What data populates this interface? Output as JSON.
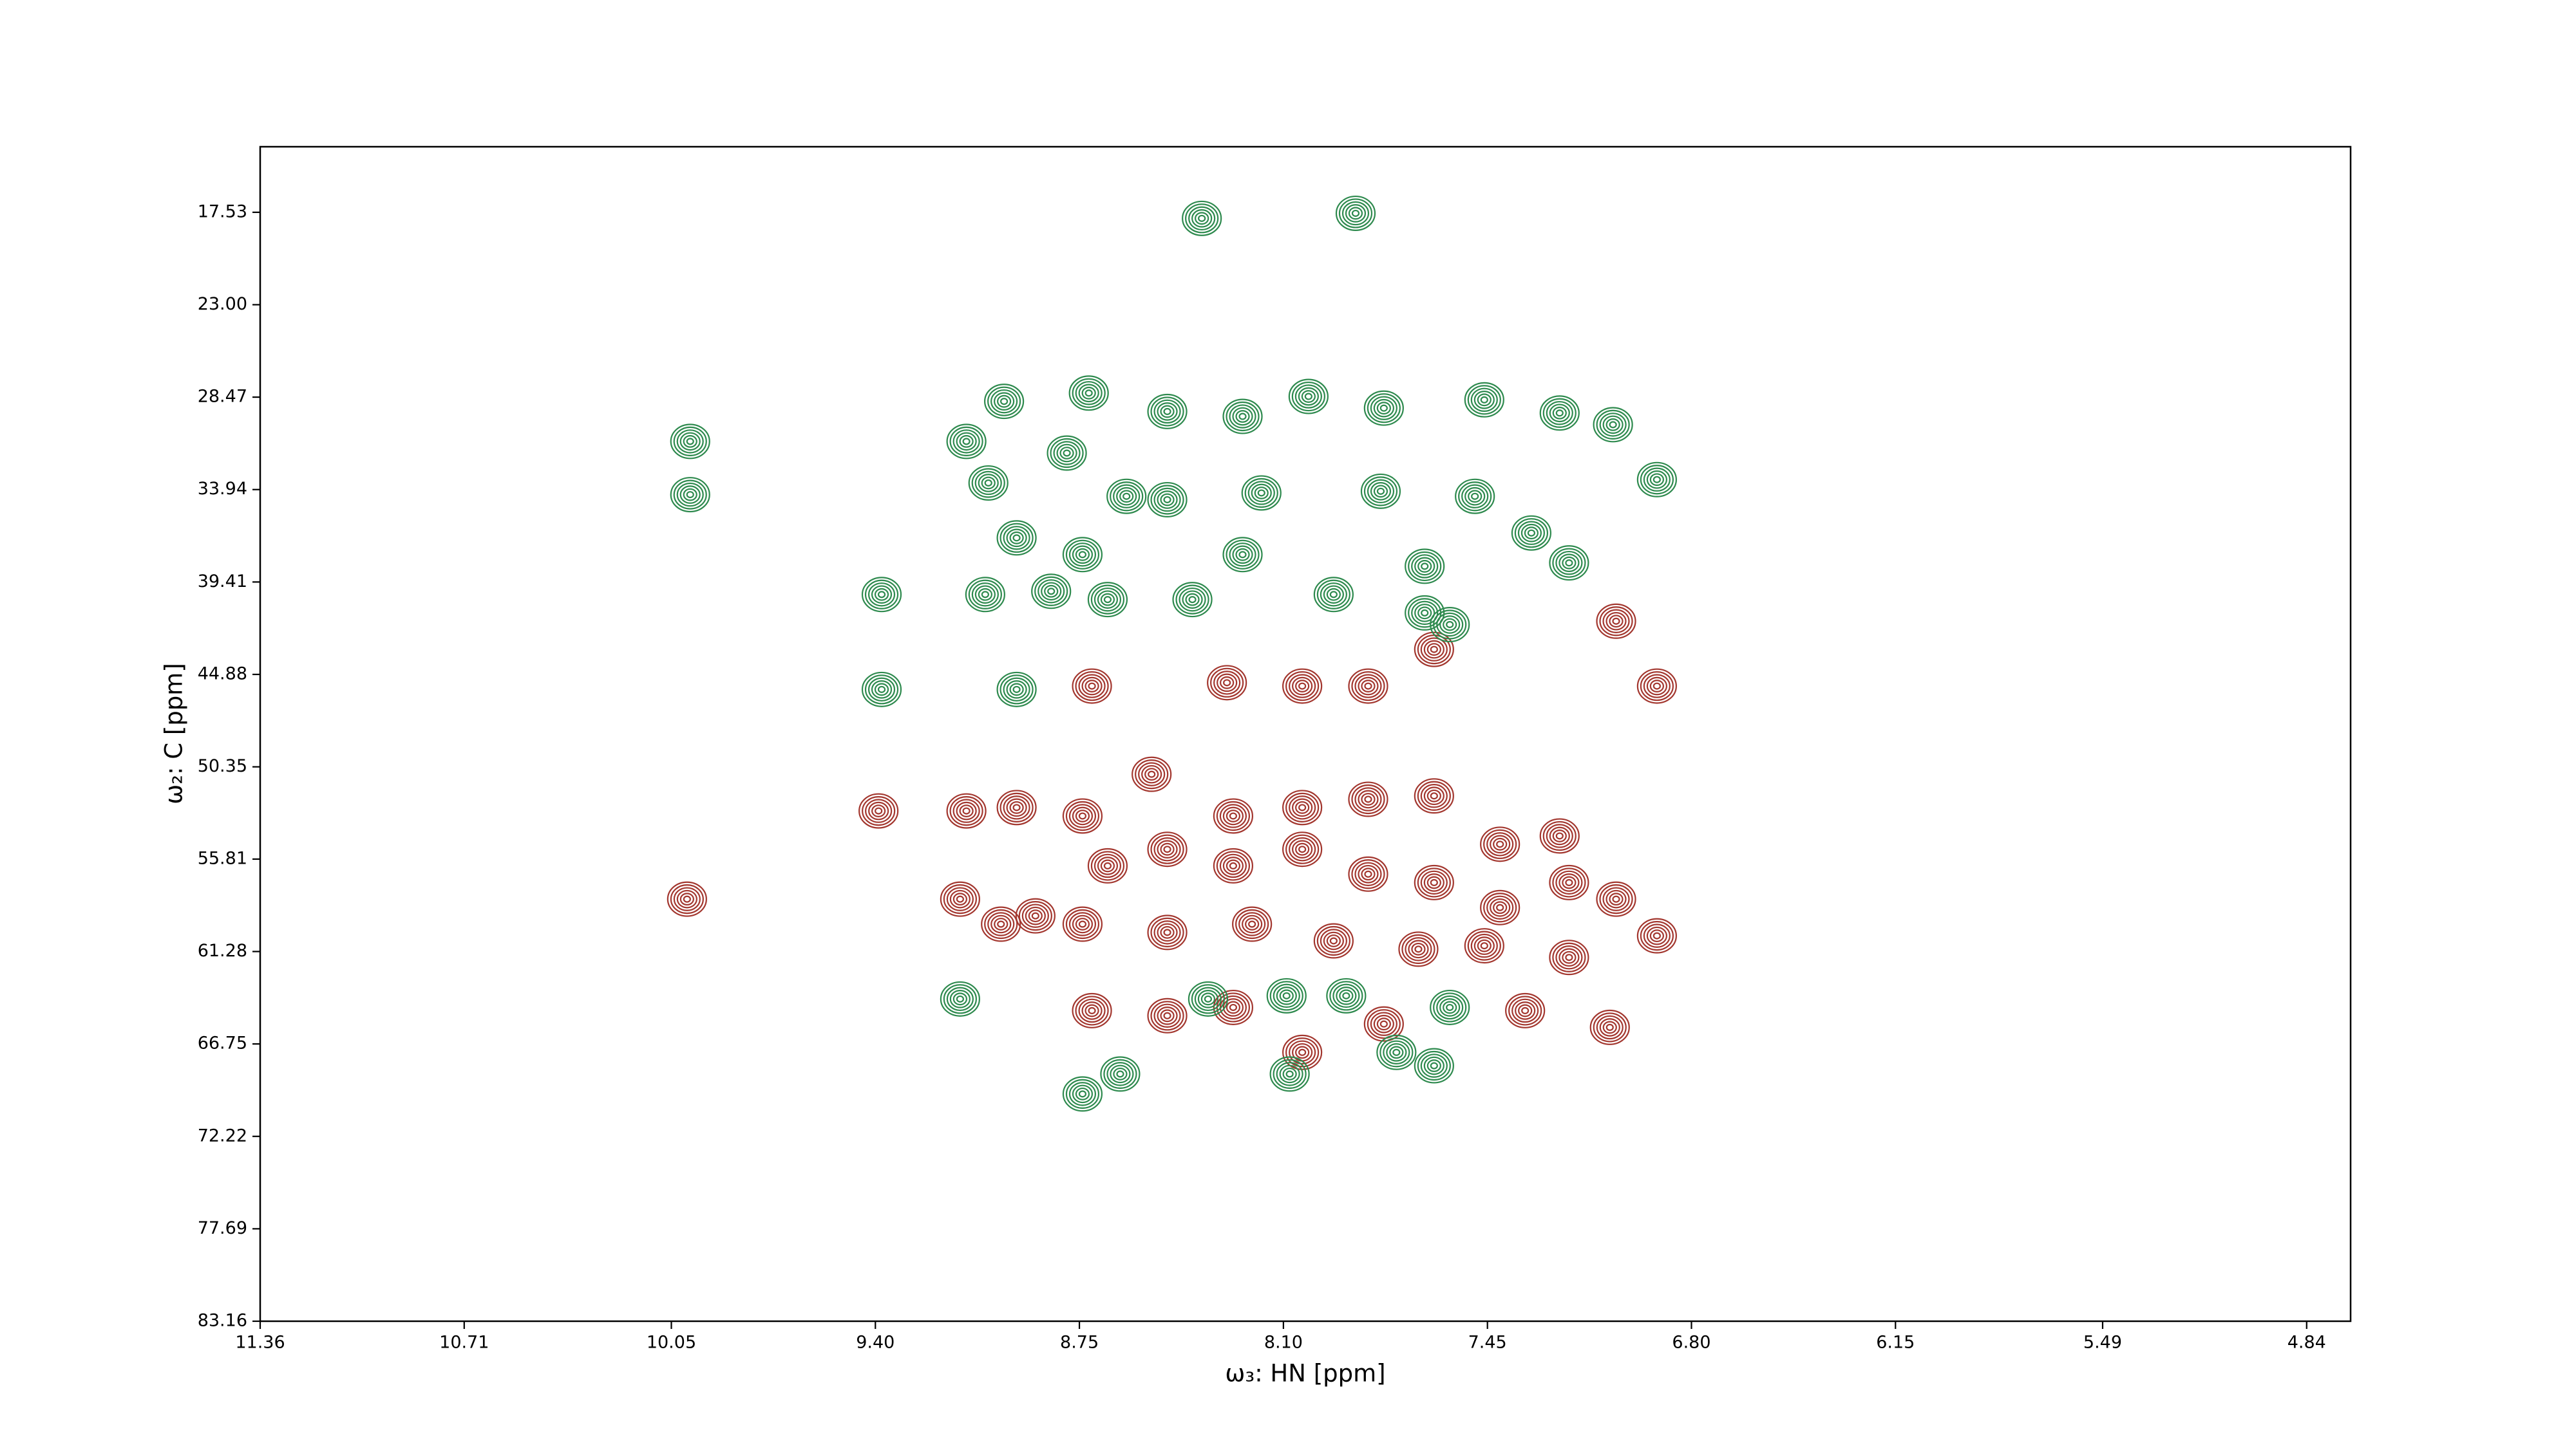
{
  "chart_data": {
    "type": "contour",
    "xlabel": "ω₃: HN [ppm]",
    "ylabel": "ω₂: C [ppm]",
    "xlim": [
      11.36,
      4.7
    ],
    "ylim": [
      83.16,
      13.65
    ],
    "xticks": [
      11.36,
      10.71,
      10.05,
      {
        "value": 9.4,
        "label": "9.40"
      },
      8.75,
      {
        "value": 8.1,
        "label": "8.10"
      },
      7.45,
      {
        "value": 6.8,
        "label": "6.80"
      },
      6.15,
      5.49,
      4.84
    ],
    "yticks": [
      17.53,
      {
        "value": 23,
        "label": "23.00"
      },
      28.47,
      33.94,
      39.41,
      44.88,
      50.35,
      55.81,
      61.28,
      66.75,
      72.22,
      77.69,
      83.16
    ],
    "series": [
      {
        "color": "#a3372f",
        "x": [
          10.0,
          9.39,
          9.11,
          8.95,
          8.74,
          8.52,
          8.26,
          8.04,
          7.83,
          7.62,
          7.41,
          7.22,
          9.13,
          8.89,
          8.66,
          8.47,
          8.26,
          8.04,
          7.83,
          7.62,
          7.41,
          7.19,
          7.04,
          9.0,
          8.74,
          8.47,
          8.2,
          7.94,
          7.67,
          7.46,
          7.19,
          6.91,
          8.71,
          8.28,
          8.04,
          7.83,
          7.62,
          7.04,
          6.91,
          8.71,
          8.47,
          8.26,
          8.04,
          7.78,
          7.33,
          7.06
        ],
        "y": [
          58.18,
          52.96,
          52.96,
          52.76,
          53.26,
          50.79,
          53.26,
          52.76,
          52.27,
          52.07,
          54.93,
          54.44,
          58.18,
          59.17,
          56.21,
          55.23,
          56.21,
          55.23,
          56.7,
          57.2,
          58.68,
          57.2,
          58.18,
          59.66,
          59.66,
          60.15,
          59.66,
          60.65,
          61.14,
          60.94,
          61.63,
          60.35,
          45.57,
          45.37,
          45.57,
          45.57,
          43.4,
          41.73,
          45.57,
          64.78,
          65.08,
          64.59,
          67.25,
          65.57,
          64.78,
          65.77
        ]
      },
      {
        "color": "#2e8a4e",
        "x": [
          8.36,
          7.87,
          8.99,
          8.72,
          9.99,
          9.99,
          9.11,
          9.04,
          8.79,
          8.6,
          8.47,
          8.23,
          8.02,
          7.78,
          7.46,
          7.22,
          7.05,
          6.91,
          7.49,
          7.79,
          8.17,
          8.47,
          8.95,
          8.74,
          9.05,
          8.84,
          8.66,
          8.39,
          8.23,
          7.94,
          7.65,
          7.65,
          7.19,
          7.57,
          9.38,
          8.95,
          9.38,
          9.13,
          8.74,
          8.62,
          8.34,
          8.09,
          7.9,
          7.62,
          7.57,
          8.08,
          7.74,
          7.31
        ],
        "y": [
          17.89,
          17.59,
          28.72,
          28.23,
          31.09,
          34.24,
          31.09,
          33.55,
          31.78,
          34.34,
          29.32,
          29.61,
          28.43,
          29.12,
          28.63,
          29.41,
          30.1,
          33.35,
          34.34,
          34.04,
          34.14,
          34.54,
          36.8,
          37.79,
          40.15,
          39.96,
          40.45,
          40.45,
          37.79,
          40.15,
          38.48,
          41.24,
          38.28,
          41.93,
          40.15,
          45.77,
          45.77,
          64.09,
          69.71,
          68.53,
          64.09,
          63.9,
          63.9,
          68.04,
          64.59,
          68.53,
          67.25,
          36.51
        ]
      }
    ]
  }
}
